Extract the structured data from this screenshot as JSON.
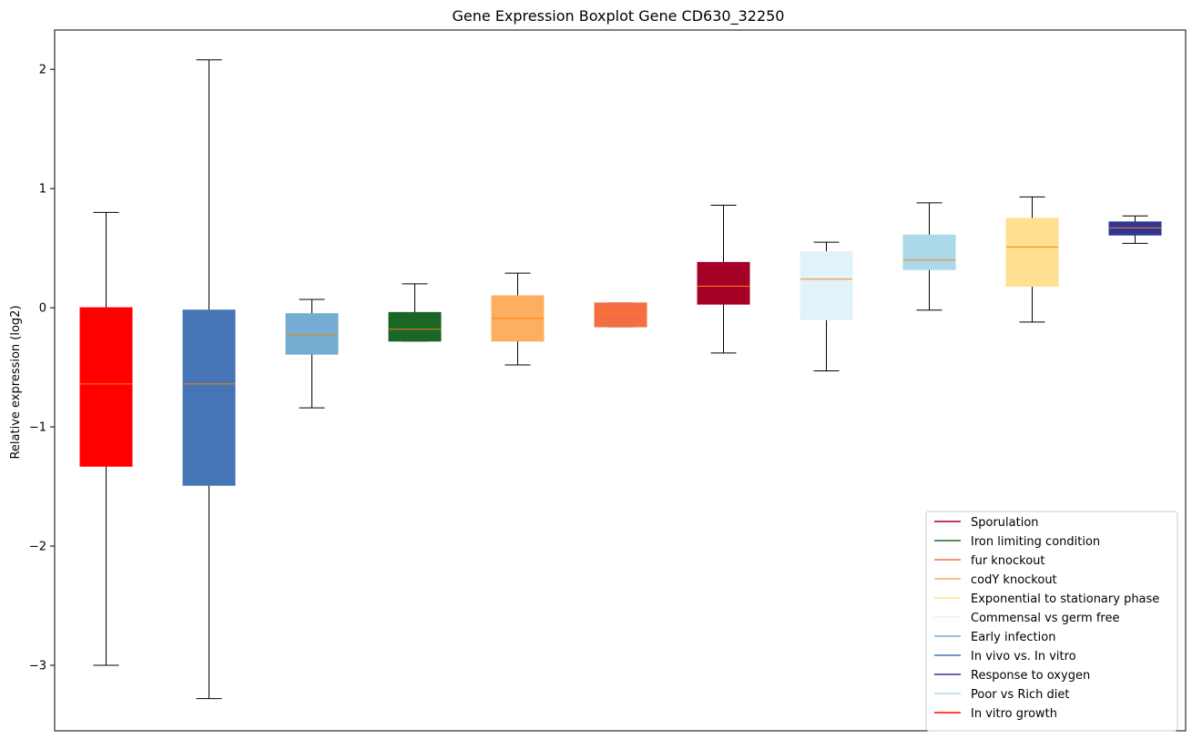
{
  "chart_data": {
    "type": "boxplot",
    "title": "Gene Expression Boxplot Gene CD630_32250",
    "xlabel": "",
    "ylabel": "Relative expression (log2)",
    "ylim": [
      -3.55,
      2.33
    ],
    "yticks": [
      -3,
      -2,
      -1,
      0,
      1,
      2
    ],
    "ytick_labels": [
      "−3",
      "−2",
      "−1",
      "0",
      "1",
      "2"
    ],
    "grid": false,
    "legend_position": "lower-right",
    "median_color": "#ff7f0e",
    "boxes": [
      {
        "name": "In vitro growth",
        "color": "#ff0000",
        "whisker_low": -3.0,
        "q1": -1.33,
        "median": -0.64,
        "q3": 0.0,
        "whisker_high": 0.8
      },
      {
        "name": "In vivo vs. In vitro",
        "color": "#4575b4",
        "whisker_low": -3.28,
        "q1": -1.49,
        "median": -0.64,
        "q3": -0.02,
        "whisker_high": 2.08
      },
      {
        "name": "Early infection",
        "color": "#74add1",
        "whisker_low": -0.84,
        "q1": -0.39,
        "median": -0.23,
        "q3": -0.05,
        "whisker_high": 0.07
      },
      {
        "name": "Iron limiting condition",
        "color": "#1a6626",
        "whisker_low": -0.28,
        "q1": -0.28,
        "median": -0.18,
        "q3": -0.04,
        "whisker_high": 0.2
      },
      {
        "name": "codY knockout",
        "color": "#fdae61",
        "whisker_low": -0.48,
        "q1": -0.28,
        "median": -0.09,
        "q3": 0.1,
        "whisker_high": 0.29
      },
      {
        "name": "fur knockout",
        "color": "#f46d43",
        "whisker_low": -0.16,
        "q1": -0.16,
        "median": -0.04,
        "q3": 0.04,
        "whisker_high": 0.04
      },
      {
        "name": "Sporulation",
        "color": "#a50026",
        "whisker_low": -0.38,
        "q1": 0.03,
        "median": 0.18,
        "q3": 0.38,
        "whisker_high": 0.86
      },
      {
        "name": "Commensal vs germ free",
        "color": "#e0f3f8",
        "whisker_low": -0.53,
        "q1": -0.1,
        "median": 0.24,
        "q3": 0.47,
        "whisker_high": 0.55
      },
      {
        "name": "Poor vs Rich diet",
        "color": "#abd9e9",
        "whisker_low": -0.02,
        "q1": 0.32,
        "median": 0.4,
        "q3": 0.61,
        "whisker_high": 0.88
      },
      {
        "name": "Exponential to stationary phase",
        "color": "#fee090",
        "whisker_low": -0.12,
        "q1": 0.18,
        "median": 0.51,
        "q3": 0.75,
        "whisker_high": 0.93
      },
      {
        "name": "Response to oxygen",
        "color": "#313695",
        "whisker_low": 0.54,
        "q1": 0.61,
        "median": 0.67,
        "q3": 0.72,
        "whisker_high": 0.77
      }
    ],
    "legend": [
      {
        "label": "Sporulation",
        "color": "#a50026"
      },
      {
        "label": "Iron limiting condition",
        "color": "#1a6626"
      },
      {
        "label": "fur knockout",
        "color": "#f46d43"
      },
      {
        "label": "codY knockout",
        "color": "#fdae61"
      },
      {
        "label": "Exponential to stationary phase",
        "color": "#fee090"
      },
      {
        "label": "Commensal vs germ free",
        "color": "#e0f3f8"
      },
      {
        "label": "Early infection",
        "color": "#74add1"
      },
      {
        "label": "In vivo vs. In vitro",
        "color": "#4575b4"
      },
      {
        "label": "Response to oxygen",
        "color": "#313695"
      },
      {
        "label": "Poor vs Rich diet",
        "color": "#abd9e9"
      },
      {
        "label": "In vitro growth",
        "color": "#ff0000"
      }
    ]
  }
}
